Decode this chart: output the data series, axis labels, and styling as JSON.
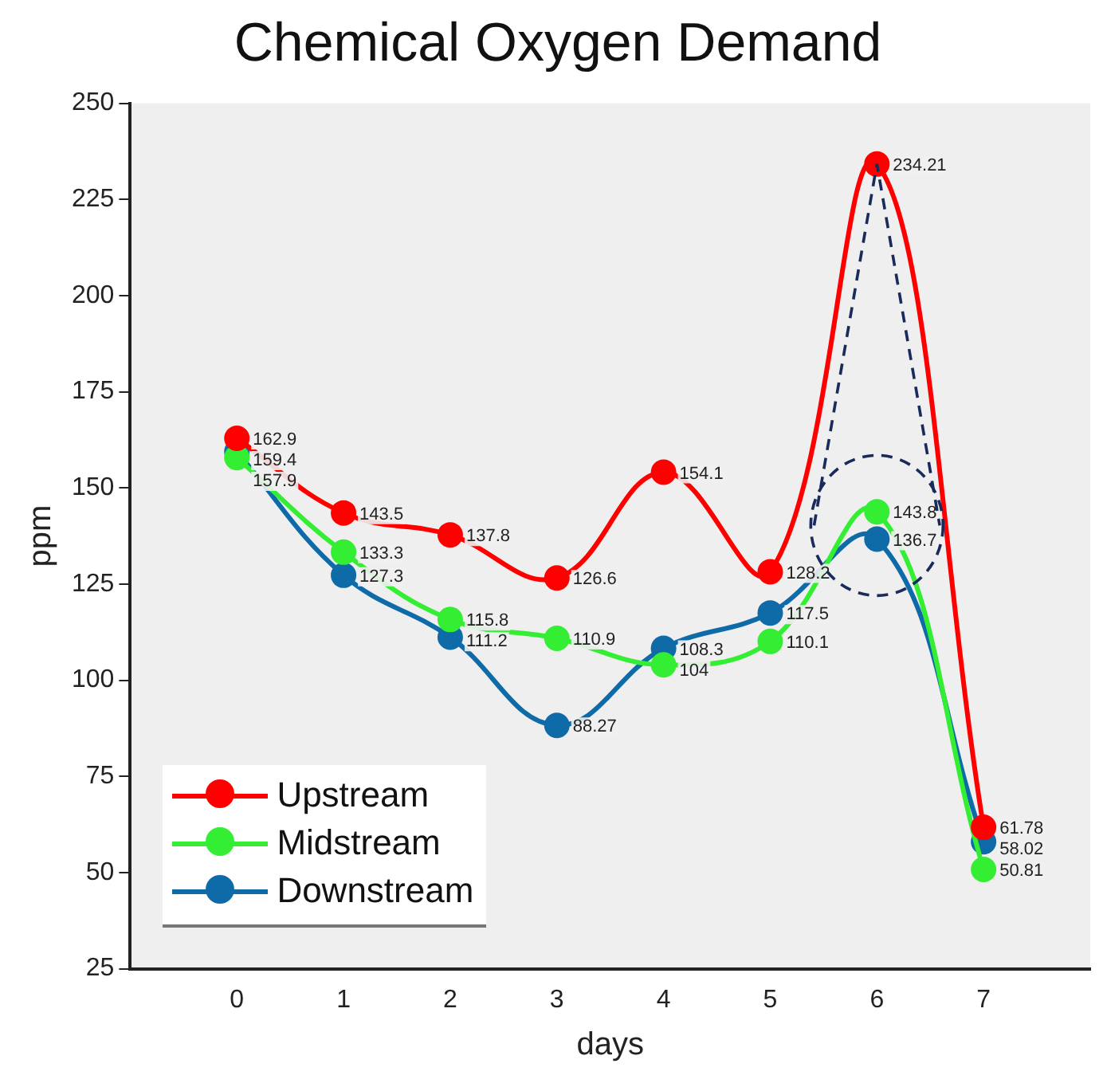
{
  "chart_data": {
    "type": "line",
    "title": "Chemical Oxygen Demand",
    "xlabel": "days",
    "ylabel": "ppm",
    "x": [
      0,
      1,
      2,
      3,
      4,
      5,
      6,
      7
    ],
    "series": [
      {
        "name": "Upstream",
        "color": "#ff0000",
        "values": [
          162.9,
          143.5,
          137.8,
          126.6,
          154.1,
          128.2,
          234.21,
          61.78
        ]
      },
      {
        "name": "Midstream",
        "color": "#33ee33",
        "values": [
          157.9,
          133.3,
          115.8,
          110.9,
          104,
          110.1,
          143.8,
          50.81
        ]
      },
      {
        "name": "Downstream",
        "color": "#0f6aa8",
        "values": [
          159.4,
          127.3,
          111.2,
          88.27,
          108.3,
          117.5,
          136.7,
          58.02
        ]
      }
    ],
    "xlim": [
      -1,
      8
    ],
    "xticks": [
      0,
      1,
      2,
      3,
      4,
      5,
      6,
      7
    ],
    "ylim": [
      25,
      250
    ],
    "yticks": [
      25,
      50,
      75,
      100,
      125,
      150,
      175,
      200,
      225,
      250
    ],
    "data_labels": true,
    "grid": false,
    "legend": "bottom left",
    "marker": "circle",
    "line_style": "solid"
  }
}
